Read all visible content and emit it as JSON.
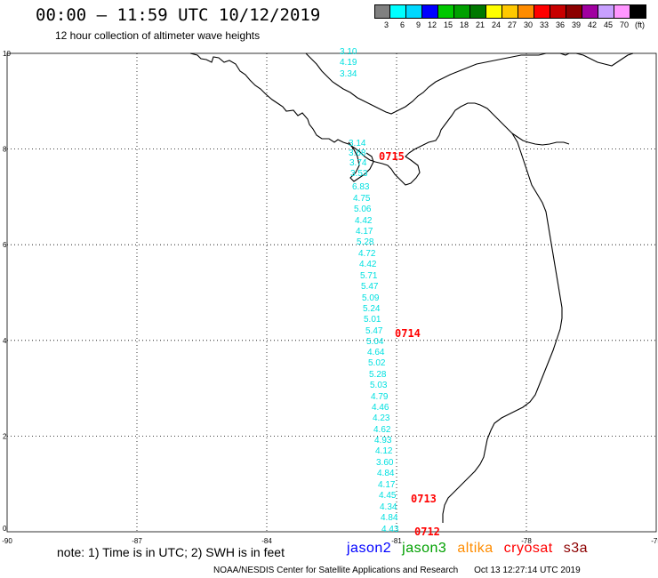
{
  "header": {
    "title": "00:00 – 11:59 UTC 10/12/2019",
    "subtitle": "12 hour collection of altimeter wave heights"
  },
  "colorbar": {
    "unit_label": "(ft)",
    "bins": [
      {
        "label": "3",
        "color": "#808080"
      },
      {
        "label": "6",
        "color": "#00ffff"
      },
      {
        "label": "9",
        "color": "#00d8ff"
      },
      {
        "label": "12",
        "color": "#0000ff"
      },
      {
        "label": "15",
        "color": "#00c800"
      },
      {
        "label": "18",
        "color": "#00a000"
      },
      {
        "label": "21",
        "color": "#007800"
      },
      {
        "label": "24",
        "color": "#ffff00"
      },
      {
        "label": "27",
        "color": "#ffc800"
      },
      {
        "label": "30",
        "color": "#ff8c00"
      },
      {
        "label": "33",
        "color": "#ff0000"
      },
      {
        "label": "36",
        "color": "#c80000"
      },
      {
        "label": "39",
        "color": "#8c0000"
      },
      {
        "label": "42",
        "color": "#a000a0"
      },
      {
        "label": "45",
        "color": "#c8a0ff"
      },
      {
        "label": "70",
        "color": "#ff96ff"
      },
      {
        "label": "",
        "color": "#000000"
      }
    ]
  },
  "axes": {
    "lon_labels": [
      "-90",
      "-87",
      "-84",
      "-81",
      "-78",
      "-75"
    ],
    "lat_labels": [
      "0",
      "2",
      "4",
      "6",
      "8",
      "10"
    ]
  },
  "track": {
    "color": "#00e0e0",
    "time_color": "#ff0000",
    "values": [
      "3.10",
      "4.19",
      "3.34",
      "3.14",
      "3.68",
      "3.74",
      "3.53",
      "6.83",
      "4.75",
      "5.06",
      "4.42",
      "4.17",
      "5.28",
      "4.72",
      "4.42",
      "5.71",
      "5.47",
      "5.09",
      "5.24",
      "5.01",
      "5.47",
      "5.04",
      "4.64",
      "5.02",
      "5.28",
      "5.03",
      "4.79",
      "4.46",
      "4.23",
      "4.62",
      "4.93",
      "4.12",
      "3.60",
      "4.84",
      "4.17",
      "4.45",
      "4.34",
      "4.84",
      "4.43"
    ],
    "times": [
      "0715",
      "0714",
      "0713",
      "0712"
    ]
  },
  "footer": {
    "note": "note:  1) Time is in UTC;  2) SWH is in feet",
    "satellites": [
      {
        "name": "jason2",
        "color": "#0000ff"
      },
      {
        "name": "jason3",
        "color": "#00a000"
      },
      {
        "name": "altika",
        "color": "#ff8c00"
      },
      {
        "name": "cryosat",
        "color": "#ff0000"
      },
      {
        "name": "s3a",
        "color": "#8c0000"
      }
    ],
    "agency": "NOAA/NESDIS Center for Satellite Applications and Research",
    "timestamp": "Oct 13 12:27:14 UTC 2019"
  }
}
